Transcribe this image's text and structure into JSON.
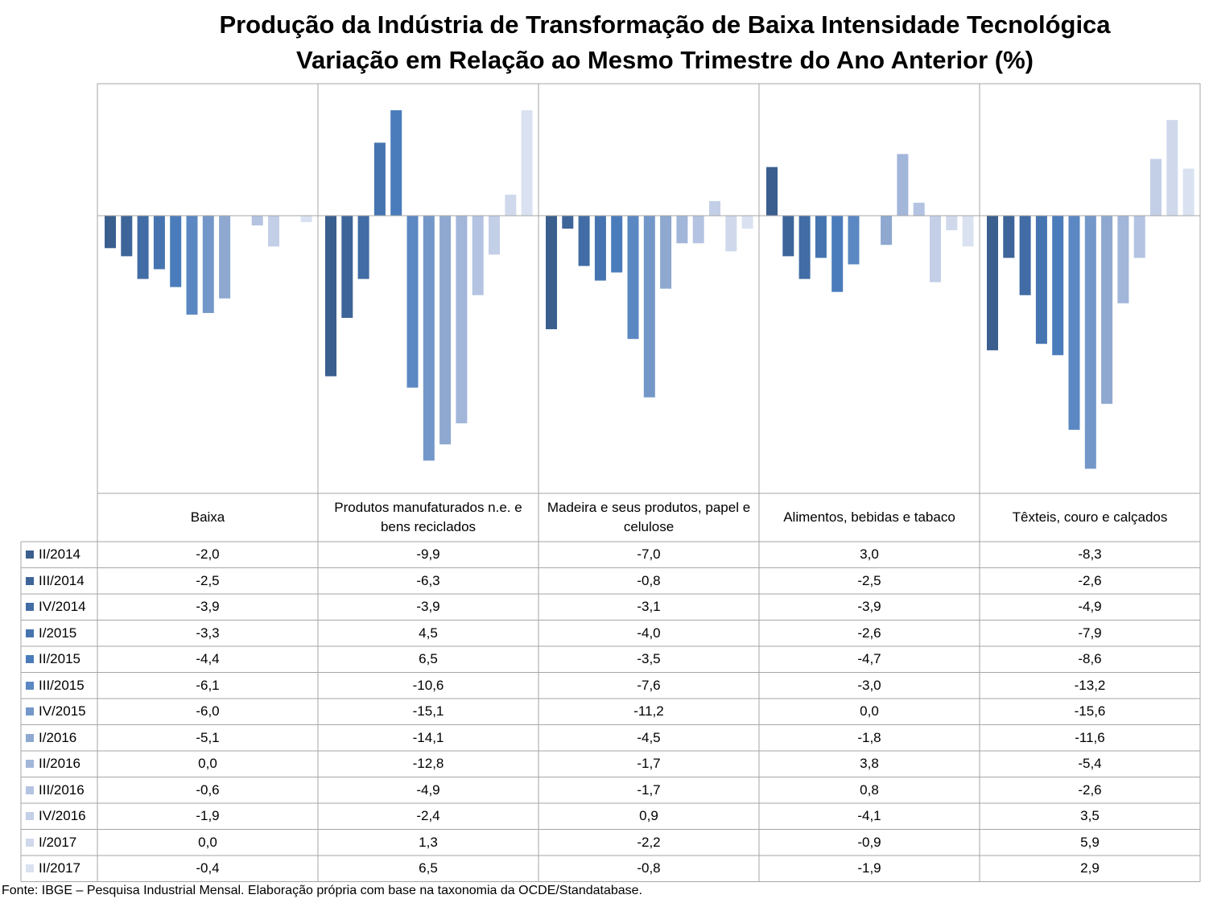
{
  "chart_data": {
    "type": "bar",
    "title": "Produção da Indústria de Transformação de Baixa Intensidade Tecnológica",
    "subtitle": "Variação em Relação ao Mesmo Trimestre do Ano Anterior (%)",
    "categories": [
      "Baixa",
      "Produtos manufaturados n.e. e bens reciclados",
      "Madeira e seus produtos, papel e celulose",
      "Alimentos, bebidas e tabaco",
      "Têxteis, couro e calçados"
    ],
    "legend_position": "data-table",
    "series": [
      {
        "name": "II/2014",
        "color": "#3a5f8f",
        "values": [
          -2.0,
          -9.9,
          -7.0,
          3.0,
          -8.3
        ],
        "labels": [
          "-2,0",
          "-9,9",
          "-7,0",
          "3,0",
          "-8,3"
        ]
      },
      {
        "name": "III/2014",
        "color": "#3d6599",
        "values": [
          -2.5,
          -6.3,
          -0.8,
          -2.5,
          -2.6
        ],
        "labels": [
          "-2,5",
          "-6,3",
          "-0,8",
          "-2,5",
          "-2,6"
        ]
      },
      {
        "name": "IV/2014",
        "color": "#416ca5",
        "values": [
          -3.9,
          -3.9,
          -3.1,
          -3.9,
          -4.9
        ],
        "labels": [
          "-3,9",
          "-3,9",
          "-3,1",
          "-3,9",
          "-4,9"
        ]
      },
      {
        "name": "I/2015",
        "color": "#4574b0",
        "values": [
          -3.3,
          4.5,
          -4.0,
          -2.6,
          -7.9
        ],
        "labels": [
          "-3,3",
          "4,5",
          "-4,0",
          "-2,6",
          "-7,9"
        ]
      },
      {
        "name": "II/2015",
        "color": "#4a7cbb",
        "values": [
          -4.4,
          6.5,
          -3.5,
          -4.7,
          -8.6
        ],
        "labels": [
          "-4,4",
          "6,5",
          "-3,5",
          "-4,7",
          "-8,6"
        ]
      },
      {
        "name": "III/2015",
        "color": "#5b88c2",
        "values": [
          -6.1,
          -10.6,
          -7.6,
          -3.0,
          -13.2
        ],
        "labels": [
          "-6,1",
          "-10,6",
          "-7,6",
          "-3,0",
          "-13,2"
        ]
      },
      {
        "name": "IV/2015",
        "color": "#7497c9",
        "values": [
          -6.0,
          -15.1,
          -11.2,
          0.0,
          -15.6
        ],
        "labels": [
          "-6,0",
          "-15,1",
          "-11,2",
          "0,0",
          "-15,6"
        ]
      },
      {
        "name": "I/2016",
        "color": "#8ea8d0",
        "values": [
          -5.1,
          -14.1,
          -4.5,
          -1.8,
          -11.6
        ],
        "labels": [
          "-5,1",
          "-14,1",
          "-4,5",
          "-1,8",
          "-11,6"
        ]
      },
      {
        "name": "II/2016",
        "color": "#a2b6da",
        "values": [
          0.0,
          -12.8,
          -1.7,
          3.8,
          -5.4
        ],
        "labels": [
          "0,0",
          "-12,8",
          "-1,7",
          "3,8",
          "-5,4"
        ]
      },
      {
        "name": "III/2016",
        "color": "#b3c3e1",
        "values": [
          -0.6,
          -4.9,
          -1.7,
          0.8,
          -2.6
        ],
        "labels": [
          "-0,6",
          "-4,9",
          "-1,7",
          "0,8",
          "-2,6"
        ]
      },
      {
        "name": "IV/2016",
        "color": "#c3cfe7",
        "values": [
          -1.9,
          -2.4,
          0.9,
          -4.1,
          3.5
        ],
        "labels": [
          "-1,9",
          "-2,4",
          "0,9",
          "-4,1",
          "3,5"
        ]
      },
      {
        "name": "I/2017",
        "color": "#d0d9ec",
        "values": [
          0.0,
          1.3,
          -2.2,
          -0.9,
          5.9
        ],
        "labels": [
          "0,0",
          "1,3",
          "-2,2",
          "-0,9",
          "5,9"
        ]
      },
      {
        "name": "II/2017",
        "color": "#dae2f1",
        "values": [
          -0.4,
          6.5,
          -0.8,
          -1.9,
          2.9
        ],
        "labels": [
          "-0,4",
          "6,5",
          "-0,8",
          "-1,9",
          "2,9"
        ]
      }
    ],
    "ylim": [
      -16.5,
      8.0
    ],
    "grid": false
  },
  "footnote": "Fonte: IBGE – Pesquisa Industrial Mensal. Elaboração própria com base na taxonomia da OCDE/Standatabase."
}
